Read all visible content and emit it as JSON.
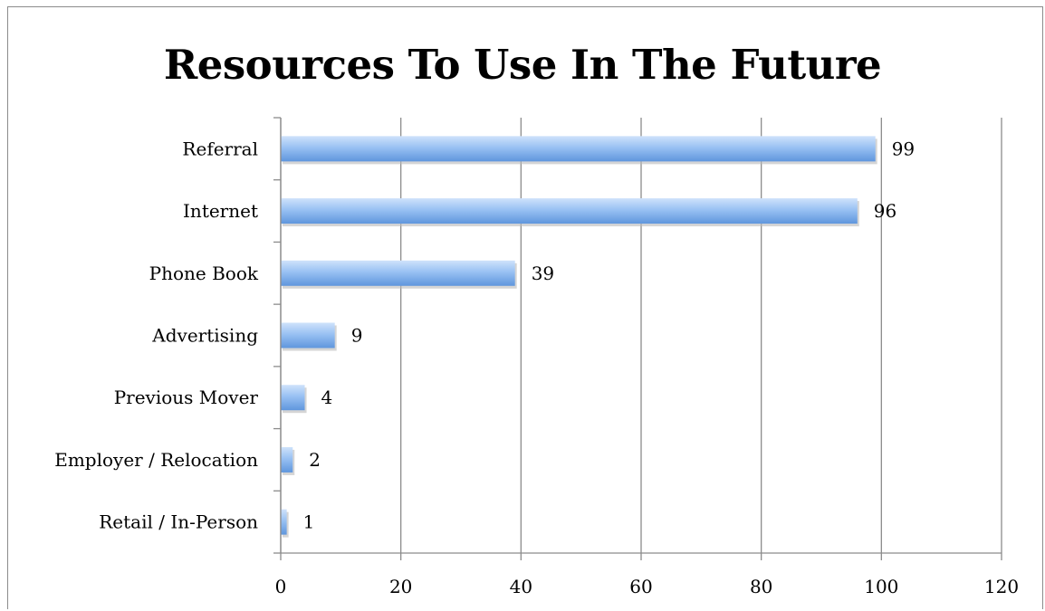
{
  "chart_data": {
    "type": "bar",
    "orientation": "horizontal",
    "title": "Resources To Use In The Future",
    "xlabel": "",
    "ylabel": "",
    "categories": [
      "Referral",
      "Internet",
      "Phone Book",
      "Advertising",
      "Previous Mover",
      "Employer / Relocation",
      "Retail / In-Person"
    ],
    "values": [
      99,
      96,
      39,
      9,
      4,
      2,
      1
    ],
    "data_labels": [
      "99",
      "96",
      "39",
      "9",
      "4",
      "2",
      "1"
    ],
    "xlim": [
      0,
      120
    ],
    "xticks": [
      0,
      20,
      40,
      60,
      80,
      100,
      120
    ],
    "xtick_labels": [
      "0",
      "20",
      "40",
      "60",
      "80",
      "100",
      "120"
    ],
    "grid": "vertical",
    "legend": "none",
    "colors": {
      "bar_light": "#b3d1f7",
      "bar_mid": "#7fb0ee",
      "bar_dark": "#5b93dd",
      "grid": "#8c8c8c"
    }
  }
}
